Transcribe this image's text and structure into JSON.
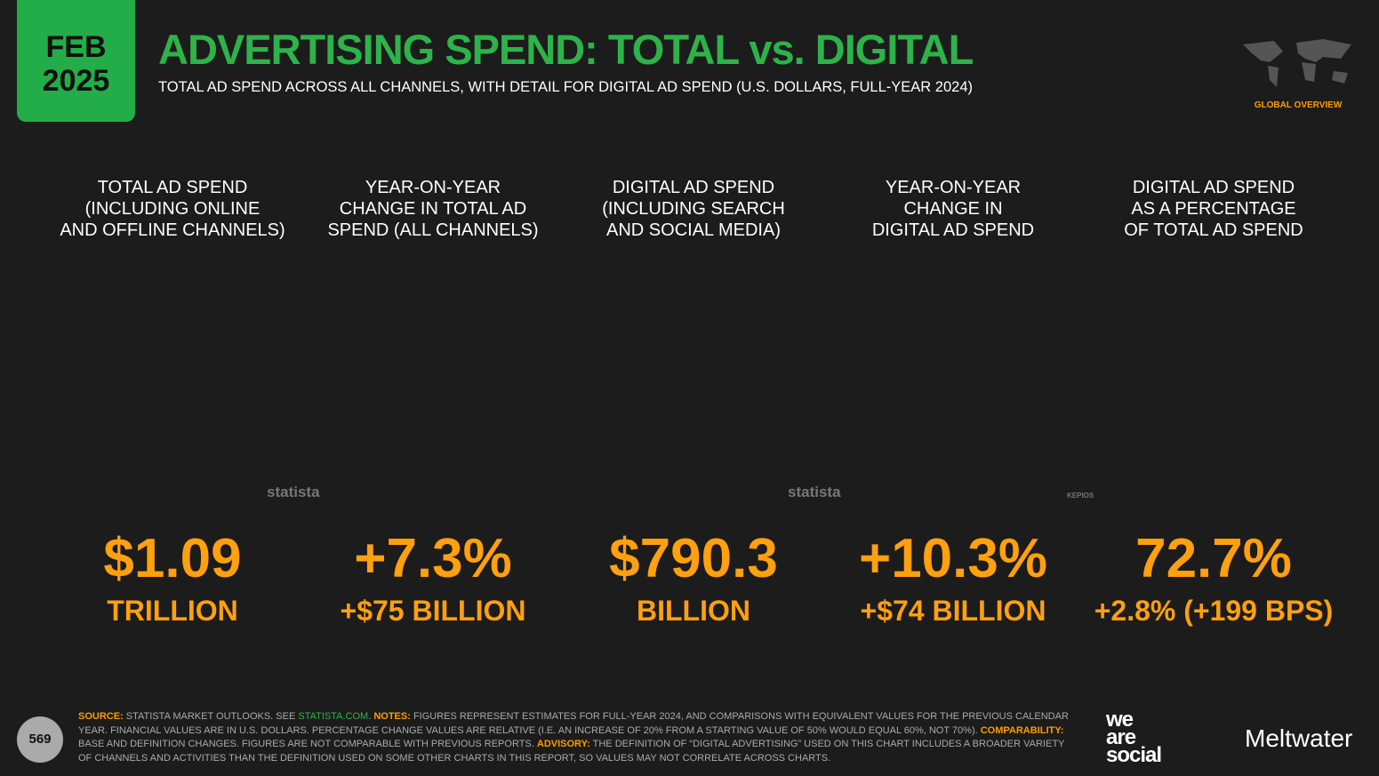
{
  "header": {
    "month": "FEB",
    "year": "2025",
    "title": "ADVERTISING SPEND: TOTAL vs. DIGITAL",
    "subtitle": "TOTAL AD SPEND ACROSS ALL CHANNELS, WITH DETAIL FOR DIGITAL AD SPEND (U.S. DOLLARS, FULL-YEAR 2024)",
    "section": "GLOBAL OVERVIEW"
  },
  "tiles": [
    {
      "label": [
        "TOTAL AD SPEND",
        "(INCLUDING ONLINE",
        "AND OFFLINE CHANNELS)"
      ],
      "value": "$1.09",
      "detail": "TRILLION",
      "color": "#ff4436",
      "source": "statista"
    },
    {
      "label": [
        "YEAR-ON-YEAR",
        "CHANGE IN TOTAL AD",
        "SPEND (ALL CHANNELS)"
      ],
      "value": "+7.3%",
      "detail": "+$75 BILLION",
      "color": "#ff9c00"
    },
    {
      "label": [
        "DIGITAL AD SPEND",
        "(INCLUDING SEARCH",
        "AND SOCIAL MEDIA)"
      ],
      "value": "$790.3",
      "detail": "BILLION",
      "color": "#1e8fff",
      "source": "statista"
    },
    {
      "label": [
        "YEAR-ON-YEAR",
        "CHANGE IN",
        "DIGITAL AD SPEND"
      ],
      "value": "+10.3%",
      "detail": "+$74 BILLION",
      "color": "#1fac3e",
      "source": "KEPIOS"
    },
    {
      "label": [
        "DIGITAL AD SPEND",
        "AS A PERCENTAGE",
        "OF TOTAL AD SPEND"
      ],
      "value": "72.7%",
      "detail": "+2.8% (+199 BPS)",
      "color": "#ff9c00"
    }
  ],
  "footer": {
    "page": "569",
    "notes": [
      {
        "kind": "key",
        "text": "SOURCE:"
      },
      {
        "kind": "text",
        "text": " STATISTA MARKET OUTLOOKS. SEE "
      },
      {
        "kind": "link",
        "text": "STATISTA.COM"
      },
      {
        "kind": "text",
        "text": ". "
      },
      {
        "kind": "key",
        "text": "NOTES:"
      },
      {
        "kind": "text",
        "text": " FIGURES REPRESENT ESTIMATES FOR FULL-YEAR 2024, AND COMPARISONS WITH EQUIVALENT VALUES FOR THE PREVIOUS CALENDAR YEAR. FINANCIAL VALUES ARE IN U.S. DOLLARS. PERCENTAGE CHANGE VALUES ARE RELATIVE (I.E. AN INCREASE OF 20% FROM A STARTING VALUE OF 50% WOULD EQUAL 60%, NOT 70%). "
      },
      {
        "kind": "key",
        "text": "COMPARABILITY:"
      },
      {
        "kind": "text",
        "text": " BASE AND DEFINITION CHANGES. FIGURES ARE NOT COMPARABLE WITH PREVIOUS REPORTS. "
      },
      {
        "kind": "key",
        "text": "ADVISORY:"
      },
      {
        "kind": "text",
        "text": " THE DEFINITION OF “DIGITAL ADVERTISING” USED ON THIS CHART INCLUDES A BROADER VARIETY OF CHANNELS AND ACTIVITIES THAN THE DEFINITION USED ON SOME OTHER CHARTS IN THIS REPORT, SO VALUES MAY NOT CORRELATE ACROSS CHARTS."
      }
    ],
    "brand_1": [
      "we",
      "are",
      "social"
    ],
    "brand_2": "Meltwater"
  }
}
